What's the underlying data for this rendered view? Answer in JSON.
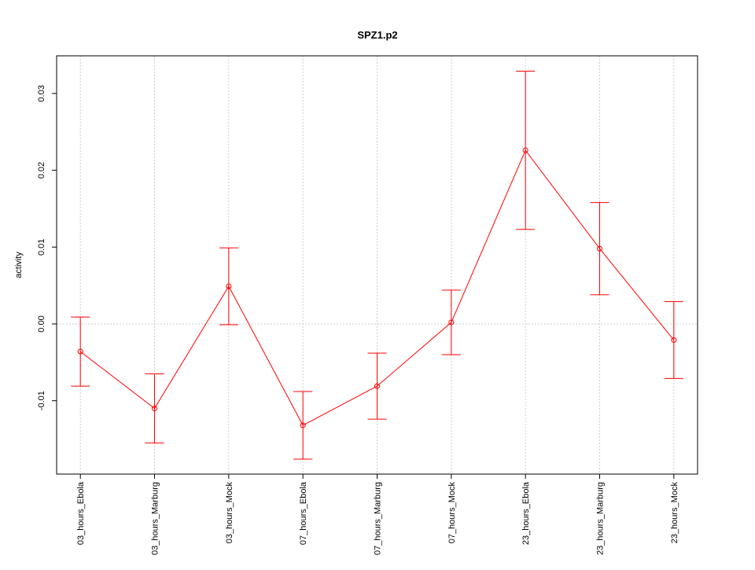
{
  "chart_data": {
    "type": "line",
    "title": "SPZ1.p2",
    "y_label": "activity",
    "categories": [
      "03_hours_Ebola",
      "03_hours_Marburg",
      "03_hours_Mock",
      "07_hours_Ebola",
      "07_hours_Marburg",
      "07_hours_Mock",
      "23_hours_Ebola",
      "23_hours_Marburg",
      "23_hours_Mock"
    ],
    "series": [
      {
        "color": "#ff0000",
        "values": [
          -0.0036,
          -0.011,
          0.0049,
          -0.0132,
          -0.0081,
          0.0002,
          0.0226,
          0.0098,
          -0.0021
        ],
        "errors": [
          0.0045,
          0.0045,
          0.005,
          0.0044,
          0.0043,
          0.0042,
          0.0103,
          0.006,
          0.005
        ]
      }
    ],
    "ylim": [
      -0.01955,
      0.0349
    ],
    "yticks": [
      -0.01,
      {
        "value": 0,
        "label": "0.00"
      },
      0.01,
      0.02,
      0.03
    ],
    "grid": true,
    "hline": 0
  }
}
